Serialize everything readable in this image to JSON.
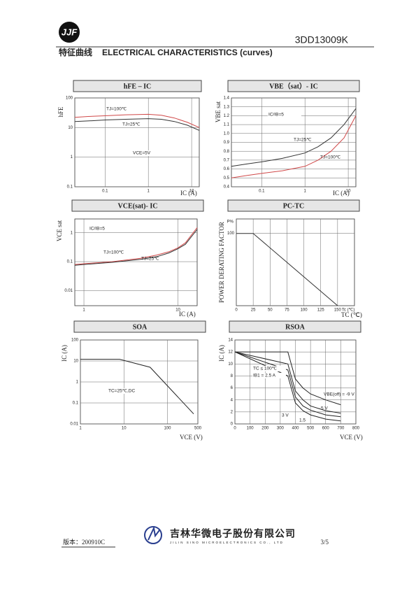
{
  "header": {
    "part_number": "3DD13009K",
    "section_cn": "特征曲线",
    "section_en": "ELECTRICAL CHARACTERISTICS (curves)"
  },
  "footer": {
    "version": "版本：200910C",
    "company_cn": "吉林华微电子股份有限公司",
    "company_en": "JILIN SINO MICROELECTRONICS CO., LTD",
    "page": "3/5"
  },
  "chart_data": [
    {
      "type": "line",
      "title": "hFE – IC",
      "xlabel": "IC (A)",
      "ylabel": "hFE",
      "xscale": "log",
      "yscale": "log",
      "xlim": [
        0.02,
        15
      ],
      "ylim": [
        0.1,
        100
      ],
      "xticks": [
        0.1,
        1,
        10
      ],
      "yticks": [
        0.1,
        1,
        10,
        100
      ],
      "grid": true,
      "x": [
        0.02,
        0.05,
        0.1,
        0.3,
        1,
        2,
        4,
        8,
        15
      ],
      "series": [
        {
          "name": "TJ=100℃",
          "color": "#d04848",
          "values": [
            22,
            24,
            25,
            27,
            28,
            26,
            21,
            15,
            10
          ]
        },
        {
          "name": "TJ=25℃",
          "color": "#333333",
          "values": [
            16,
            17,
            18,
            19,
            20,
            19,
            16,
            12,
            8
          ]
        }
      ],
      "annotations": [
        "VCE=5V"
      ]
    },
    {
      "type": "line",
      "title": "VBE（sat）- IC",
      "xlabel": "IC (A)",
      "ylabel": "VBE sat",
      "xscale": "log",
      "yscale": "linear",
      "xlim": [
        0.02,
        15
      ],
      "ylim": [
        0.4,
        1.4
      ],
      "xticks": [
        0.1,
        1,
        10
      ],
      "yticks": [
        0.4,
        0.5,
        0.6,
        0.7,
        0.8,
        0.9,
        {
          "value": 1,
          "label": "1.0"
        },
        1.1,
        1.2,
        1.3,
        1.4
      ],
      "grid": true,
      "x": [
        0.02,
        0.05,
        0.1,
        0.3,
        1,
        2,
        4,
        8,
        15
      ],
      "series": [
        {
          "name": "TJ=25℃",
          "color": "#333333",
          "values": [
            0.63,
            0.66,
            0.68,
            0.72,
            0.78,
            0.85,
            0.95,
            1.1,
            1.28
          ]
        },
        {
          "name": "TJ=100℃",
          "color": "#d04848",
          "values": [
            0.5,
            0.53,
            0.55,
            0.58,
            0.63,
            0.7,
            0.8,
            0.95,
            1.2
          ]
        }
      ],
      "annotations": [
        "IC/IB=5"
      ]
    },
    {
      "type": "line",
      "title": "VCE(sat)- IC",
      "xlabel": "IC (A)",
      "ylabel": "VCE sat",
      "xscale": "log",
      "yscale": "log",
      "xlim": [
        0.8,
        16
      ],
      "ylim": [
        0.003,
        3
      ],
      "xticks": [
        1,
        10
      ],
      "yticks": [
        0.01,
        0.1,
        1
      ],
      "grid": true,
      "x": [
        0.8,
        1,
        2,
        4,
        6,
        8,
        10,
        12,
        16
      ],
      "series": [
        {
          "name": "TJ=100℃",
          "color": "#d04848",
          "values": [
            0.08,
            0.085,
            0.1,
            0.13,
            0.17,
            0.22,
            0.3,
            0.45,
            1.5
          ]
        },
        {
          "name": "TJ=25℃",
          "color": "#333333",
          "values": [
            0.075,
            0.08,
            0.095,
            0.12,
            0.15,
            0.2,
            0.28,
            0.4,
            1.3
          ]
        }
      ],
      "annotations": [
        "IC/IB=5"
      ]
    },
    {
      "type": "line",
      "title": "PC-TC",
      "xlabel": "TC (℃)",
      "ylabel": "POWER DERATING FACTOR",
      "yunit": "P%",
      "xunit": "Tc (℃)",
      "xscale": "linear",
      "yscale": "linear",
      "xlim": [
        0,
        175
      ],
      "ylim": [
        0,
        120
      ],
      "xticks": [
        0,
        25,
        50,
        75,
        100,
        125,
        150
      ],
      "yticks": [
        100
      ],
      "grid": true,
      "x": [
        0,
        25,
        150
      ],
      "series": [
        {
          "color": "#333333",
          "values": [
            100,
            100,
            0
          ]
        }
      ],
      "annotations": []
    },
    {
      "type": "line",
      "title": "SOA",
      "xlabel": "VCE (V)",
      "ylabel": "IC (A)",
      "xscale": "log",
      "yscale": "log",
      "xlim": [
        1,
        500
      ],
      "ylim": [
        0.01,
        100
      ],
      "xticks": [
        1,
        10,
        100,
        500
      ],
      "yticks": [
        0.01,
        0.1,
        1,
        10,
        100
      ],
      "grid": true,
      "x": [
        1,
        8,
        40,
        400
      ],
      "series": [
        {
          "color": "#222222",
          "values": [
            12,
            12,
            5,
            0.03
          ]
        }
      ],
      "annotations": [
        "TC=25℃,DC"
      ]
    },
    {
      "type": "line",
      "title": "RSOA",
      "xlabel": "VCE (V)",
      "ylabel": "IC (A)",
      "xscale": "linear",
      "yscale": "linear",
      "xlim": [
        0,
        800
      ],
      "ylim": [
        0,
        14
      ],
      "xticks": [
        0,
        100,
        200,
        300,
        400,
        500,
        600,
        700,
        800
      ],
      "yticks": [
        0,
        2,
        4,
        6,
        8,
        10,
        12,
        14
      ],
      "grid": true,
      "x": [
        0,
        350,
        400,
        450,
        500,
        600,
        700
      ],
      "series": [
        {
          "name": "VBE(off) = -9 V",
          "color": "#222222",
          "values": [
            12,
            12,
            7.5,
            6,
            5,
            4,
            3.2
          ]
        },
        {
          "name": "- 5 V",
          "color": "#222222",
          "values": [
            12,
            10,
            5.5,
            4,
            3,
            2.2,
            1.8
          ]
        },
        {
          "name": "3 V",
          "color": "#222222",
          "values": [
            12,
            9,
            4.5,
            3,
            2.3,
            1.5,
            1.2
          ]
        },
        {
          "name": "1.5",
          "color": "#222222",
          "values": [
            12,
            8,
            3.5,
            2.2,
            1.5,
            0.8,
            0.5
          ]
        }
      ],
      "annotations": [
        "TC ≤ 100℃",
        "IB1 = 2.5 A"
      ]
    }
  ]
}
